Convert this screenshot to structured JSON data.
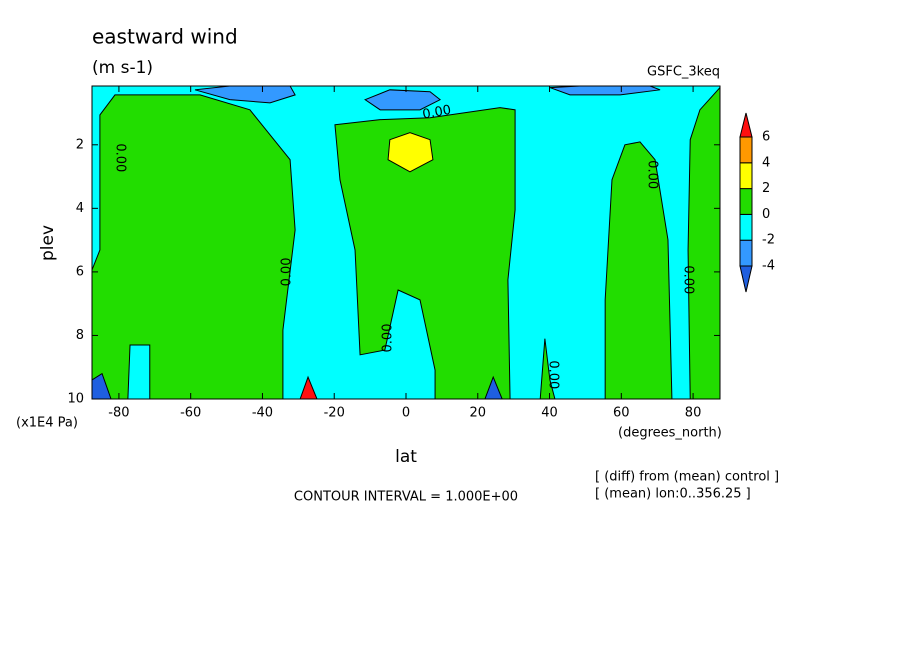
{
  "chart_data": {
    "type": "contour",
    "title": "eastward wind",
    "subtitle": "(m s-1)",
    "source": "GSFC_3keq",
    "x_label": "lat",
    "y_label": "plev",
    "x_units": "(degrees_north)",
    "y_units": "(x1E4 Pa)",
    "footer": "CONTOUR INTERVAL = 1.000E+00",
    "notes": [
      "[ (diff) from (mean) control ]",
      "[ (mean) lon:0..356.25 ]"
    ],
    "xlim": [
      -87.5,
      87.5
    ],
    "xticks": [
      -80,
      -60,
      -40,
      -20,
      0,
      20,
      40,
      60,
      80
    ],
    "ylim": [
      10,
      0.15
    ],
    "yticks": [
      2,
      4,
      6,
      8,
      10
    ],
    "colorbar": {
      "levels": [
        -4,
        -2,
        0,
        2,
        4,
        6
      ],
      "colors": [
        "#1f5fe0",
        "#3399ff",
        "#00ffff",
        "#22dd00",
        "#ffff00",
        "#ff9900",
        "#ff1010"
      ]
    },
    "background_level": [
      -2,
      0
    ],
    "regions": [
      {
        "level": [
          0,
          2
        ],
        "points": [
          [
            -87.5,
            5.94
          ],
          [
            -85.3,
            5.31
          ],
          [
            -85.3,
            1.06
          ],
          [
            -81.1,
            0.43
          ],
          [
            -57.4,
            0.43
          ],
          [
            -43.5,
            0.9
          ],
          [
            -32.3,
            2.47
          ],
          [
            -30.9,
            4.68
          ],
          [
            -34.3,
            7.83
          ],
          [
            -34.3,
            10
          ],
          [
            -71.4,
            10
          ],
          [
            -71.4,
            8.3
          ],
          [
            -76.9,
            8.3
          ],
          [
            -77.5,
            10
          ],
          [
            -83.9,
            10
          ],
          [
            -87.5,
            9.4
          ]
        ]
      },
      {
        "level": [
          0,
          2
        ],
        "points": [
          [
            -19.8,
            1.37
          ],
          [
            -7.2,
            1.21
          ],
          [
            6.7,
            1.15
          ],
          [
            26.2,
            0.83
          ],
          [
            30.4,
            0.9
          ],
          [
            30.4,
            4.05
          ],
          [
            28.4,
            6.25
          ],
          [
            29,
            10
          ],
          [
            8.1,
            10
          ],
          [
            8.1,
            9.09
          ],
          [
            3.9,
            6.88
          ],
          [
            -2.2,
            6.57
          ],
          [
            -5.9,
            8.46
          ],
          [
            -12.8,
            8.61
          ],
          [
            -14.2,
            5.31
          ],
          [
            -18.4,
            3.1
          ]
        ]
      },
      {
        "level": [
          2,
          4
        ],
        "points": [
          [
            -4.5,
            1.84
          ],
          [
            1.1,
            1.62
          ],
          [
            6.7,
            1.84
          ],
          [
            7.5,
            2.47
          ],
          [
            1.1,
            2.85
          ],
          [
            -5,
            2.47
          ]
        ]
      },
      {
        "level": [
          0,
          2
        ],
        "points": [
          [
            55.5,
            10
          ],
          [
            55.5,
            6.88
          ],
          [
            57.4,
            3.1
          ],
          [
            61,
            2
          ],
          [
            65.2,
            1.91
          ],
          [
            69.4,
            2.47
          ],
          [
            73,
            4.99
          ],
          [
            74.1,
            10
          ]
        ]
      },
      {
        "level": [
          0,
          2
        ],
        "points": [
          [
            79.2,
            1.84
          ],
          [
            81.9,
            0.9
          ],
          [
            87.5,
            0.2
          ],
          [
            87.5,
            10
          ],
          [
            79.2,
            10
          ],
          [
            78.6,
            5.31
          ]
        ]
      },
      {
        "level": [
          0,
          2
        ],
        "points": [
          [
            37.4,
            10
          ],
          [
            38.7,
            8.1
          ],
          [
            40.1,
            9.4
          ],
          [
            41.5,
            10
          ]
        ]
      },
      {
        "level": [
          -4,
          -2
        ],
        "points": [
          [
            -58.8,
            0.27
          ],
          [
            -49.1,
            0.15
          ],
          [
            -32.3,
            0.15
          ],
          [
            -30.9,
            0.43
          ],
          [
            -37.9,
            0.68
          ],
          [
            -49.1,
            0.58
          ]
        ]
      },
      {
        "level": [
          -4,
          -2
        ],
        "points": [
          [
            -11.4,
            0.58
          ],
          [
            -4.5,
            0.27
          ],
          [
            6.7,
            0.33
          ],
          [
            9.5,
            0.58
          ],
          [
            3.9,
            0.9
          ],
          [
            -7.2,
            0.9
          ]
        ]
      },
      {
        "level": [
          -4,
          -2
        ],
        "points": [
          [
            40.1,
            0.2
          ],
          [
            48.5,
            0.15
          ],
          [
            68,
            0.15
          ],
          [
            70.8,
            0.27
          ],
          [
            59.7,
            0.43
          ],
          [
            45.7,
            0.43
          ]
        ]
      },
      {
        "level": [
          null,
          -4
        ],
        "points": [
          [
            -87.5,
            9.4
          ],
          [
            -84.7,
            9.2
          ],
          [
            -82.2,
            10
          ],
          [
            -87.5,
            10
          ]
        ]
      },
      {
        "level": [
          6,
          null
        ],
        "points": [
          [
            -27.3,
            9.31
          ],
          [
            -24.8,
            10
          ],
          [
            -29.5,
            10
          ]
        ]
      },
      {
        "level": [
          null,
          -4
        ],
        "points": [
          [
            24.3,
            9.31
          ],
          [
            26.8,
            10
          ],
          [
            22,
            10
          ]
        ]
      }
    ],
    "contour_labels": [
      {
        "text": "0.00",
        "at": [
          -79.7,
          2.41
        ]
      },
      {
        "text": "0.00",
        "at": [
          -33.2,
          6
        ]
      },
      {
        "text": "0.00",
        "at": [
          -5,
          8.08
        ]
      },
      {
        "text": "0.00",
        "at": [
          8.6,
          0.99
        ]
      },
      {
        "text": "0.00",
        "at": [
          41,
          9.24
        ]
      },
      {
        "text": "0.00",
        "at": [
          68.6,
          2.94
        ]
      },
      {
        "text": "0.00",
        "at": [
          78.6,
          6.25
        ]
      }
    ]
  }
}
